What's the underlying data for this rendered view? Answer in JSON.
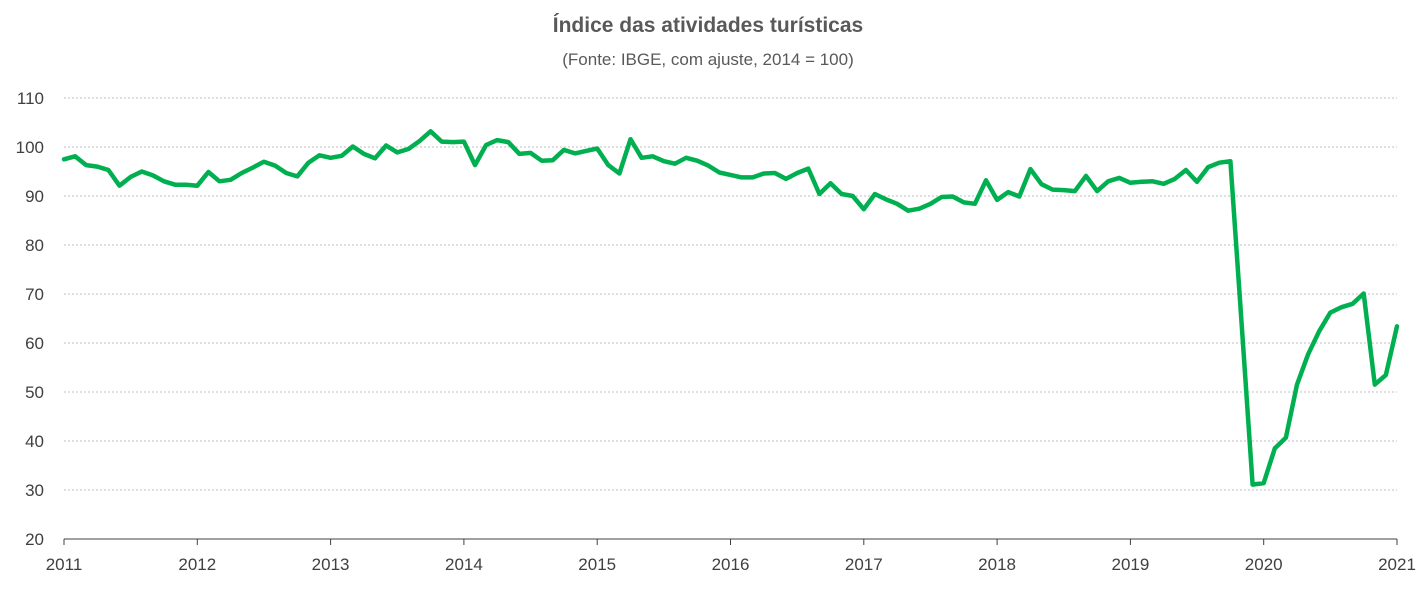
{
  "chart_data": {
    "type": "line",
    "title": "Índice das atividades turísticas",
    "subtitle": "(Fonte: IBGE, com ajuste, 2014 = 100)",
    "xlabel": "",
    "ylabel": "",
    "ylim": [
      20,
      110
    ],
    "yticks": [
      20,
      30,
      40,
      50,
      60,
      70,
      80,
      90,
      100,
      110
    ],
    "xlim": [
      2011,
      2021
    ],
    "xticks": [
      "2011",
      "2012",
      "2013",
      "2014",
      "2015",
      "2016",
      "2017",
      "2018",
      "2019",
      "2020",
      "2021"
    ],
    "grid": true,
    "color": "#00b050",
    "series": [
      {
        "name": "Índice das atividades turísticas",
        "start": "2011-01",
        "values": [
          97.5,
          98.1,
          96.3,
          96.0,
          95.3,
          92.1,
          93.9,
          95.0,
          94.2,
          93.0,
          92.3,
          92.3,
          92.1,
          94.9,
          93.0,
          93.3,
          94.7,
          95.8,
          97.0,
          96.2,
          94.7,
          94.0,
          96.8,
          98.3,
          97.8,
          98.2,
          100.1,
          98.6,
          97.7,
          100.3,
          98.9,
          99.6,
          101.2,
          103.2,
          101.1,
          101.0,
          101.1,
          96.3,
          100.4,
          101.4,
          101.0,
          98.6,
          98.8,
          97.2,
          97.3,
          99.4,
          98.7,
          99.2,
          99.7,
          96.3,
          94.6,
          101.6,
          97.8,
          98.1,
          97.1,
          96.6,
          97.8,
          97.2,
          96.2,
          94.8,
          94.3,
          93.8,
          93.8,
          94.6,
          94.7,
          93.5,
          94.7,
          95.6,
          90.4,
          92.6,
          90.4,
          90.0,
          87.3,
          90.4,
          89.3,
          88.4,
          87.0,
          87.4,
          88.4,
          89.8,
          89.9,
          88.7,
          88.4,
          93.2,
          89.2,
          90.8,
          89.9,
          95.5,
          92.4,
          91.3,
          91.2,
          91.0,
          94.1,
          91.0,
          93.0,
          93.7,
          92.7,
          92.9,
          93.0,
          92.5,
          93.5,
          95.3,
          92.9,
          95.9,
          96.8,
          97.1,
          64.3,
          31.1,
          31.4,
          38.5,
          40.7,
          51.5,
          57.7,
          62.4,
          66.2,
          67.3,
          68.0,
          70.1,
          51.5,
          53.5,
          63.4
        ]
      }
    ]
  }
}
